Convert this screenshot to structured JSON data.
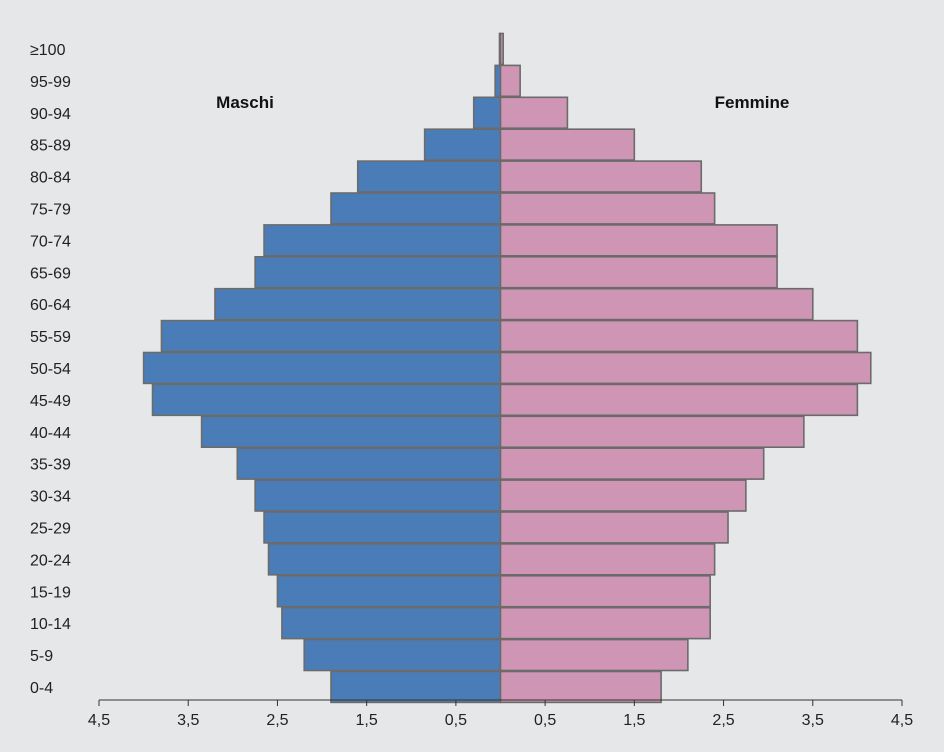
{
  "chart_data": {
    "type": "bar",
    "orientation": "horizontal",
    "layout": "population-pyramid",
    "title": "",
    "xlabel": "",
    "ylabel": "",
    "categories": [
      "0-4",
      "5-9",
      "10-14",
      "15-19",
      "20-24",
      "25-29",
      "30-34",
      "35-39",
      "40-44",
      "45-49",
      "50-54",
      "55-59",
      "60-64",
      "65-69",
      "70-74",
      "75-79",
      "80-84",
      "85-89",
      "90-94",
      "95-99",
      "≥100"
    ],
    "series": [
      {
        "name": "Maschi",
        "side": "left",
        "color": "#4a7db7",
        "values": [
          1.9,
          2.2,
          2.45,
          2.5,
          2.6,
          2.65,
          2.75,
          2.95,
          3.35,
          3.9,
          4.0,
          3.8,
          3.2,
          2.75,
          2.65,
          1.9,
          1.6,
          0.85,
          0.3,
          0.06,
          0.01
        ]
      },
      {
        "name": "Femmine",
        "side": "right",
        "color": "#cf95b4",
        "values": [
          1.8,
          2.1,
          2.35,
          2.35,
          2.4,
          2.55,
          2.75,
          2.95,
          3.4,
          4.0,
          4.15,
          4.0,
          3.5,
          3.1,
          3.1,
          2.4,
          2.25,
          1.5,
          0.75,
          0.22,
          0.03
        ]
      }
    ],
    "xlim": [
      -4.5,
      4.5
    ],
    "x_ticks": [
      -4.5,
      -3.5,
      -2.5,
      -1.5,
      -0.5,
      0.5,
      1.5,
      2.5,
      3.5,
      4.5
    ],
    "x_tick_labels": [
      "4,5",
      "3,5",
      "2,5",
      "1,5",
      "0,5",
      "0,5",
      "1,5",
      "2,5",
      "3,5",
      "4,5"
    ],
    "grid": false,
    "legend": "inline-labels",
    "bar_edge_color": "#6b6b6b",
    "background_color": "#e6e7e8"
  }
}
